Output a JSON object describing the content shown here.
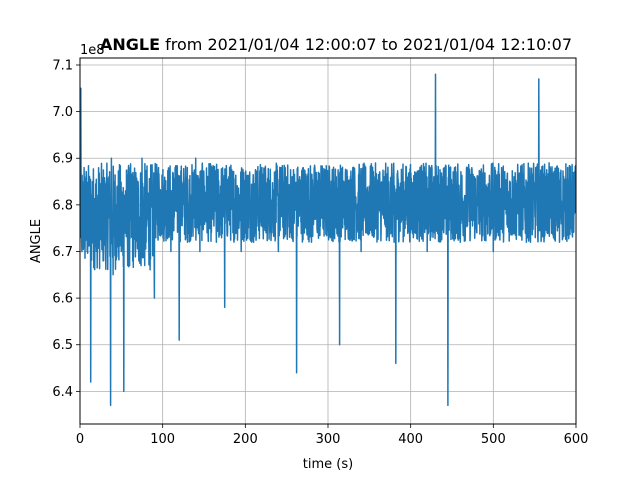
{
  "chart_data": {
    "type": "line",
    "title_bold": "ANGLE",
    "title_rest": " from 2021/01/04 12:00:07 to 2021/01/04 12:10:07",
    "xlabel": "time (s)",
    "ylabel": "ANGLE",
    "y_offset_label": "1e8",
    "xlim": [
      0,
      600
    ],
    "ylim": [
      6.33,
      7.115
    ],
    "x_ticks": [
      0,
      100,
      200,
      300,
      400,
      500,
      600
    ],
    "x_tick_labels": [
      "0",
      "100",
      "200",
      "300",
      "400",
      "500",
      "600"
    ],
    "y_ticks": [
      6.4,
      6.5,
      6.6,
      6.7,
      6.8,
      6.9,
      7.0,
      7.1
    ],
    "y_tick_labels": [
      "6.4",
      "6.5",
      "6.6",
      "6.7",
      "6.8",
      "6.9",
      "7.0",
      "7.1"
    ],
    "grid": true,
    "line_color": "#1f77b4",
    "series": [
      {
        "x": [
          0,
          1,
          2,
          5,
          9,
          12,
          13,
          15,
          20,
          25,
          30,
          35,
          37,
          38,
          40,
          45,
          50,
          53,
          55,
          60,
          65,
          70,
          75,
          80,
          85,
          90,
          95,
          100,
          105,
          110,
          115,
          120,
          125,
          130,
          135,
          140,
          145,
          150,
          155,
          160,
          165,
          170,
          175,
          180,
          185,
          190,
          195,
          200,
          210,
          220,
          225,
          230,
          240,
          250,
          255,
          260,
          262,
          270,
          280,
          290,
          300,
          310,
          314,
          320,
          325,
          330,
          340,
          350,
          360,
          370,
          380,
          382,
          390,
          400,
          410,
          420,
          428,
          430,
          440,
          445,
          450,
          460,
          470,
          480,
          490,
          500,
          510,
          520,
          530,
          540,
          550,
          555,
          560,
          570,
          580,
          590,
          600
        ],
        "y": [
          6.8,
          7.05,
          6.72,
          6.88,
          6.75,
          6.82,
          6.42,
          6.85,
          6.7,
          6.82,
          6.72,
          6.86,
          6.37,
          6.9,
          6.65,
          6.84,
          6.7,
          6.4,
          6.83,
          6.67,
          6.86,
          6.75,
          6.9,
          6.72,
          6.82,
          6.6,
          6.88,
          6.74,
          6.83,
          6.7,
          6.88,
          6.51,
          6.85,
          6.72,
          6.82,
          6.9,
          6.7,
          6.84,
          6.74,
          6.88,
          6.72,
          6.84,
          6.58,
          6.86,
          6.74,
          6.82,
          6.7,
          6.85,
          6.72,
          6.88,
          6.74,
          6.82,
          6.7,
          6.86,
          6.74,
          6.82,
          6.44,
          6.88,
          6.72,
          6.84,
          6.75,
          6.86,
          6.5,
          6.82,
          6.74,
          6.88,
          6.7,
          6.84,
          6.75,
          6.82,
          6.72,
          6.46,
          6.86,
          6.74,
          6.82,
          6.7,
          6.86,
          7.08,
          6.74,
          6.37,
          6.84,
          6.72,
          6.86,
          6.74,
          6.82,
          6.7,
          6.88,
          6.74,
          6.84,
          6.72,
          6.82,
          7.07,
          6.74,
          6.86,
          6.72,
          6.88,
          6.8
        ]
      }
    ]
  }
}
